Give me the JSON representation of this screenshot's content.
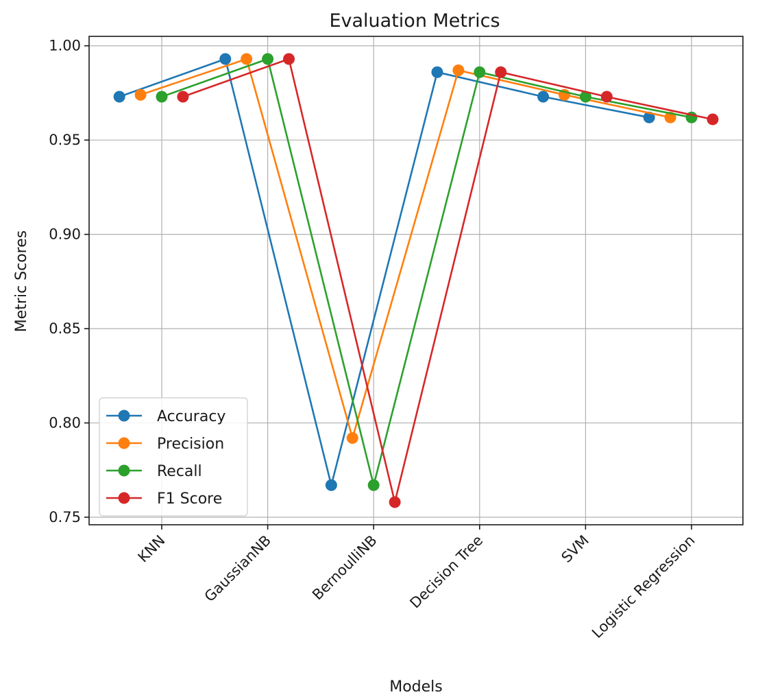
{
  "chart_data": {
    "type": "line",
    "title": "Evaluation Metrics",
    "xlabel": "Models",
    "ylabel": "Metric Scores",
    "categories": [
      "KNN",
      "GaussianNB",
      "BernoulliNB",
      "Decision Tree",
      "SVM",
      "Logistic Regression"
    ],
    "ylim": [
      0.746,
      1.005
    ],
    "yticks": [
      "0.75",
      "0.80",
      "0.85",
      "0.90",
      "0.95",
      "1.00"
    ],
    "grid": true,
    "legend_position": "lower-left",
    "series": [
      {
        "name": "Accuracy",
        "color": "#1f77b4",
        "x": [
          -0.4,
          0.6,
          1.6,
          2.6,
          3.6,
          4.6
        ],
        "values": [
          0.973,
          0.993,
          0.767,
          0.986,
          0.973,
          0.962
        ]
      },
      {
        "name": "Precision",
        "color": "#ff7f0e",
        "x": [
          -0.2,
          0.8,
          1.8,
          2.8,
          3.8,
          4.8
        ],
        "values": [
          0.974,
          0.993,
          0.792,
          0.987,
          0.974,
          0.962
        ]
      },
      {
        "name": "Recall",
        "color": "#2ca02c",
        "x": [
          0.0,
          1.0,
          2.0,
          3.0,
          4.0,
          5.0
        ],
        "values": [
          0.973,
          0.993,
          0.767,
          0.986,
          0.973,
          0.962
        ]
      },
      {
        "name": "F1 Score",
        "color": "#d62728",
        "x": [
          0.2,
          1.2,
          2.2,
          3.2,
          4.2,
          5.2
        ],
        "values": [
          0.973,
          0.993,
          0.758,
          0.986,
          0.973,
          0.961
        ]
      }
    ]
  }
}
